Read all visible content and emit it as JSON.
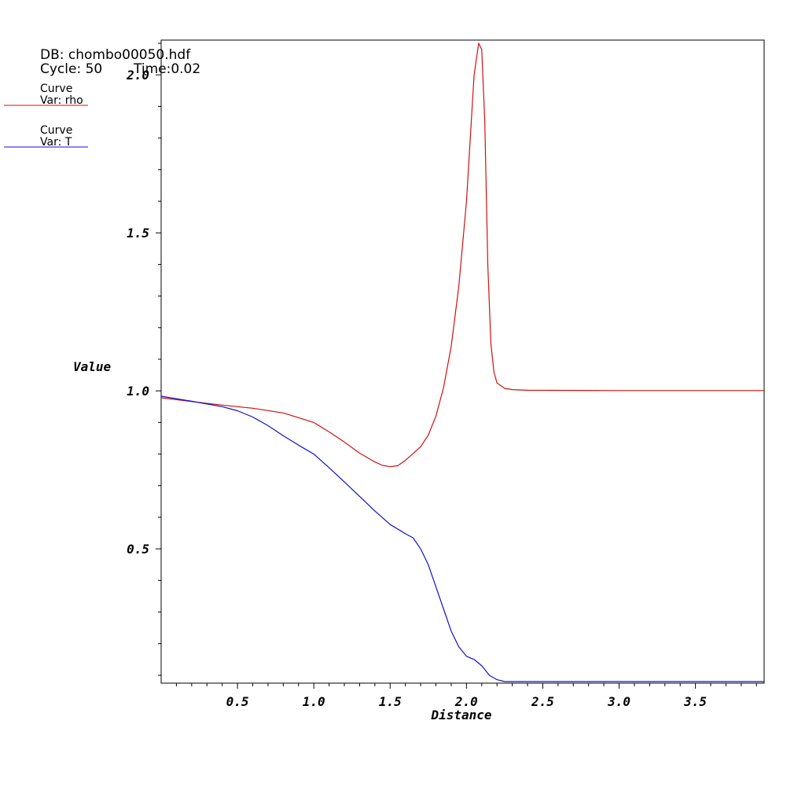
{
  "header": {
    "db_line": "DB: chombo00050.hdf",
    "cycle_line": "Cycle: 50",
    "time_line": "Time:0.02"
  },
  "legend": [
    {
      "label": "Curve",
      "var": "Var: rho",
      "color": "#d01010"
    },
    {
      "label": "Curve",
      "var": "Var: T",
      "color": "#1010d0"
    }
  ],
  "chart_data": {
    "type": "line",
    "xlabel": "Distance",
    "ylabel": "Value",
    "xlim": [
      0.0,
      3.95
    ],
    "ylim": [
      0.075,
      2.11
    ],
    "x_ticks": [
      0.5,
      1.0,
      1.5,
      2.0,
      2.5,
      3.0,
      3.5
    ],
    "y_ticks": [
      0.5,
      1.0,
      1.5,
      2.0
    ],
    "x_tick_labels": [
      "0.5",
      "1.0",
      "1.5",
      "2.0",
      "2.5",
      "3.0",
      "3.5"
    ],
    "y_tick_labels": [
      "0.5",
      "1.0",
      "1.5",
      "2.0"
    ],
    "grid": false,
    "legend_position": "top-left",
    "series": [
      {
        "name": "rho",
        "color": "#d01010",
        "points": [
          [
            0.0,
            0.978
          ],
          [
            0.2,
            0.966
          ],
          [
            0.4,
            0.955
          ],
          [
            0.6,
            0.945
          ],
          [
            0.8,
            0.93
          ],
          [
            1.0,
            0.9
          ],
          [
            1.1,
            0.87
          ],
          [
            1.2,
            0.838
          ],
          [
            1.3,
            0.803
          ],
          [
            1.4,
            0.775
          ],
          [
            1.45,
            0.764
          ],
          [
            1.5,
            0.76
          ],
          [
            1.55,
            0.763
          ],
          [
            1.6,
            0.78
          ],
          [
            1.7,
            0.823
          ],
          [
            1.75,
            0.86
          ],
          [
            1.8,
            0.92
          ],
          [
            1.85,
            1.01
          ],
          [
            1.9,
            1.14
          ],
          [
            1.95,
            1.33
          ],
          [
            2.0,
            1.6
          ],
          [
            2.03,
            1.84
          ],
          [
            2.05,
            2.0
          ],
          [
            2.08,
            2.1
          ],
          [
            2.1,
            2.08
          ],
          [
            2.12,
            1.85
          ],
          [
            2.14,
            1.4
          ],
          [
            2.16,
            1.15
          ],
          [
            2.18,
            1.06
          ],
          [
            2.2,
            1.025
          ],
          [
            2.25,
            1.008
          ],
          [
            2.3,
            1.004
          ],
          [
            2.4,
            1.002
          ],
          [
            3.0,
            1.001
          ],
          [
            3.95,
            1.001
          ]
        ]
      },
      {
        "name": "T",
        "color": "#1010d0",
        "points": [
          [
            0.0,
            0.983
          ],
          [
            0.2,
            0.967
          ],
          [
            0.4,
            0.95
          ],
          [
            0.5,
            0.937
          ],
          [
            0.6,
            0.917
          ],
          [
            0.7,
            0.89
          ],
          [
            0.8,
            0.858
          ],
          [
            0.9,
            0.828
          ],
          [
            1.0,
            0.8
          ],
          [
            1.1,
            0.757
          ],
          [
            1.2,
            0.712
          ],
          [
            1.3,
            0.666
          ],
          [
            1.4,
            0.62
          ],
          [
            1.5,
            0.577
          ],
          [
            1.6,
            0.548
          ],
          [
            1.65,
            0.535
          ],
          [
            1.7,
            0.5
          ],
          [
            1.75,
            0.45
          ],
          [
            1.8,
            0.38
          ],
          [
            1.85,
            0.31
          ],
          [
            1.9,
            0.24
          ],
          [
            1.95,
            0.19
          ],
          [
            2.0,
            0.16
          ],
          [
            2.05,
            0.15
          ],
          [
            2.1,
            0.13
          ],
          [
            2.15,
            0.1
          ],
          [
            2.2,
            0.086
          ],
          [
            2.25,
            0.08
          ],
          [
            2.5,
            0.08
          ],
          [
            3.0,
            0.08
          ],
          [
            3.95,
            0.08
          ]
        ]
      }
    ]
  }
}
